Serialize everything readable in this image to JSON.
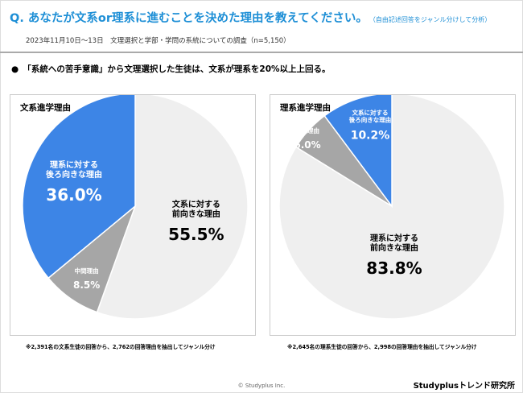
{
  "header": {
    "title": "Q. あなたが文系or理系に進むことを決めた理由を教えてください。",
    "title_note": "（自由記述回答をジャンル分けして分析）",
    "subtitle": "2023年11月10日～13日　文理選択と学部・学問の系統についての調査（n=5,150）",
    "bullet": "「系統への苦手意識」から文理選択した生徒は、文系が理系を20%以上上回る。"
  },
  "chart_data": [
    {
      "type": "pie",
      "title": "文系進学理由",
      "start": "top",
      "direction": "clockwise",
      "slices": [
        {
          "label": "文系に対する前向きな理由",
          "value": 55.5,
          "value_label": "55.5%",
          "color": "#efefef"
        },
        {
          "label": "中間理由",
          "value": 8.5,
          "value_label": "8.5%",
          "color": "#a6a6a6"
        },
        {
          "label": "理系に対する後ろ向きな理由",
          "value": 36.0,
          "value_label": "36.0%",
          "color": "#3d85e6"
        }
      ],
      "note": "※2,391名の文系生徒の回答から、2,762の回答理由を抽出してジャンル分け"
    },
    {
      "type": "pie",
      "title": "理系進学理由",
      "start": "top",
      "direction": "clockwise",
      "slices": [
        {
          "label": "理系に対する前向きな理由",
          "value": 83.8,
          "value_label": "83.8%",
          "color": "#efefef"
        },
        {
          "label": "中間理由",
          "value": 6.0,
          "value_label": "6.0%",
          "color": "#a6a6a6"
        },
        {
          "label": "文系に対する後ろ向きな理由",
          "value": 10.2,
          "value_label": "10.2%",
          "color": "#3d85e6"
        }
      ],
      "note": "※2,645名の理系生徒の回答から、2,998の回答理由を抽出してジャンル分け"
    }
  ],
  "footer": {
    "copyright": "© Studyplus Inc.",
    "brand": "Studyplusトレンド研究所"
  }
}
